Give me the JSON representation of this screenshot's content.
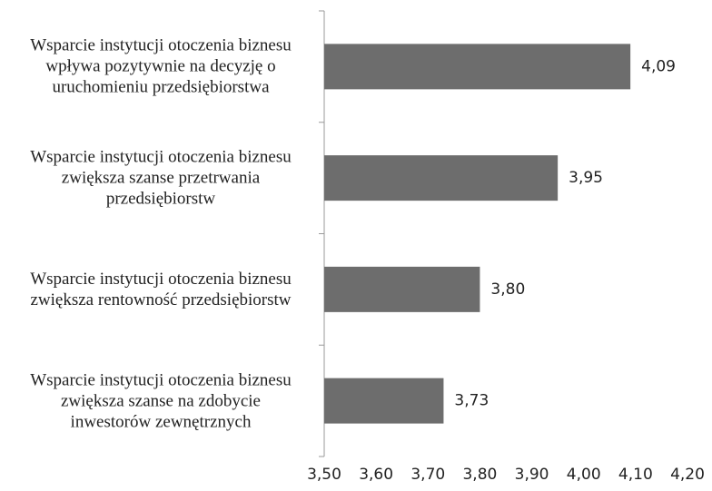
{
  "chart_data": {
    "type": "hbar",
    "categories": [
      "Wsparcie instytucji otoczenia biznesu\nwpływa pozytywnie na decyzję o\nuruchomieniu przedsiębiorstwa",
      "Wsparcie instytucji otoczenia biznesu\nzwiększa szanse przetrwania\nprzedsiębiorstw",
      "Wsparcie instytucji otoczenia biznesu\nzwiększa rentowność przedsiębiorstw",
      "Wsparcie instytucji otoczenia biznesu\nzwiększa szanse na zdobycie\ninwestorów zewnętrznych"
    ],
    "values": [
      4.09,
      3.95,
      3.8,
      3.73
    ],
    "value_labels": [
      "4,09",
      "3,95",
      "3,80",
      "3,73"
    ],
    "color": "#6d6d6d",
    "xlim": [
      3.5,
      4.2
    ],
    "xticks": [
      {
        "value": 3.5,
        "label": "3,50"
      },
      {
        "value": 3.6,
        "label": "3,60"
      },
      {
        "value": 3.7,
        "label": "3,70"
      },
      {
        "value": 3.8,
        "label": "3,80"
      },
      {
        "value": 3.9,
        "label": "3,90"
      },
      {
        "value": 4.0,
        "label": "4,00"
      },
      {
        "value": 4.1,
        "label": "4,10"
      },
      {
        "value": 4.2,
        "label": "4,20"
      }
    ]
  }
}
